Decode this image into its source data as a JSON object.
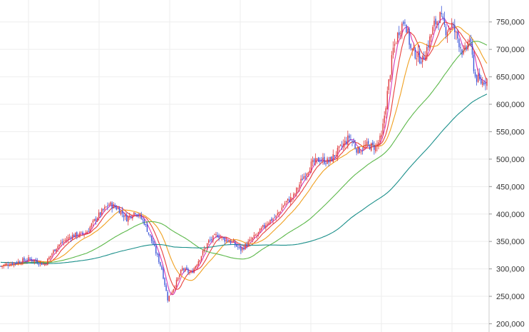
{
  "chart_data": {
    "type": "candlestick",
    "y_axis": {
      "position": "right",
      "ylim": [
        185000,
        790000
      ],
      "tick_values": [
        200000,
        250000,
        300000,
        350000,
        400000,
        450000,
        500000,
        550000,
        600000,
        650000,
        700000,
        750000
      ],
      "tick_labels": [
        "200,000",
        "250,000",
        "300,000",
        "350,000",
        "400,000",
        "450,000",
        "500,000",
        "550,000",
        "600,000",
        "650,000",
        "700,000",
        "750,000"
      ]
    },
    "x_axis": {
      "labels_shown": false
    },
    "grid": {
      "vertical": true,
      "horizontal": true,
      "color": "#eeeeee"
    },
    "candle_colors": {
      "up": "#e03a3e",
      "down": "#3b55d9"
    },
    "anchors": [
      [
        0,
        305000
      ],
      [
        10,
        312000
      ],
      [
        20,
        318000
      ],
      [
        30,
        308000
      ],
      [
        38,
        340000
      ],
      [
        48,
        360000
      ],
      [
        58,
        365000
      ],
      [
        66,
        395000
      ],
      [
        74,
        418000
      ],
      [
        80,
        410000
      ],
      [
        86,
        392000
      ],
      [
        92,
        405000
      ],
      [
        98,
        385000
      ],
      [
        104,
        345000
      ],
      [
        110,
        300000
      ],
      [
        114,
        245000
      ],
      [
        118,
        265000
      ],
      [
        124,
        300000
      ],
      [
        130,
        292000
      ],
      [
        136,
        320000
      ],
      [
        142,
        350000
      ],
      [
        148,
        362000
      ],
      [
        152,
        355000
      ],
      [
        158,
        348000
      ],
      [
        164,
        335000
      ],
      [
        170,
        350000
      ],
      [
        176,
        365000
      ],
      [
        182,
        385000
      ],
      [
        188,
        395000
      ],
      [
        194,
        420000
      ],
      [
        200,
        432000
      ],
      [
        206,
        465000
      ],
      [
        212,
        490000
      ],
      [
        218,
        500000
      ],
      [
        224,
        495000
      ],
      [
        232,
        520000
      ],
      [
        238,
        540000
      ],
      [
        244,
        515000
      ],
      [
        250,
        525000
      ],
      [
        256,
        522000
      ],
      [
        260,
        540000
      ],
      [
        264,
        620000
      ],
      [
        268,
        700000
      ],
      [
        272,
        735000
      ],
      [
        276,
        755000
      ],
      [
        280,
        700000
      ],
      [
        284,
        690000
      ],
      [
        288,
        680000
      ],
      [
        292,
        710000
      ],
      [
        296,
        745000
      ],
      [
        300,
        760000
      ],
      [
        304,
        735000
      ],
      [
        308,
        745000
      ],
      [
        312,
        720000
      ],
      [
        316,
        690000
      ],
      [
        320,
        720000
      ],
      [
        324,
        650000
      ],
      [
        328,
        640000
      ],
      [
        332,
        645000
      ]
    ],
    "series": [
      {
        "period": 5,
        "color": "#d63ab8"
      },
      {
        "period": 10,
        "color": "#e8403a"
      },
      {
        "period": 20,
        "color": "#f0a020"
      },
      {
        "period": 60,
        "color": "#5cb84a"
      },
      {
        "period": 120,
        "color": "#1a8f8a"
      }
    ]
  }
}
